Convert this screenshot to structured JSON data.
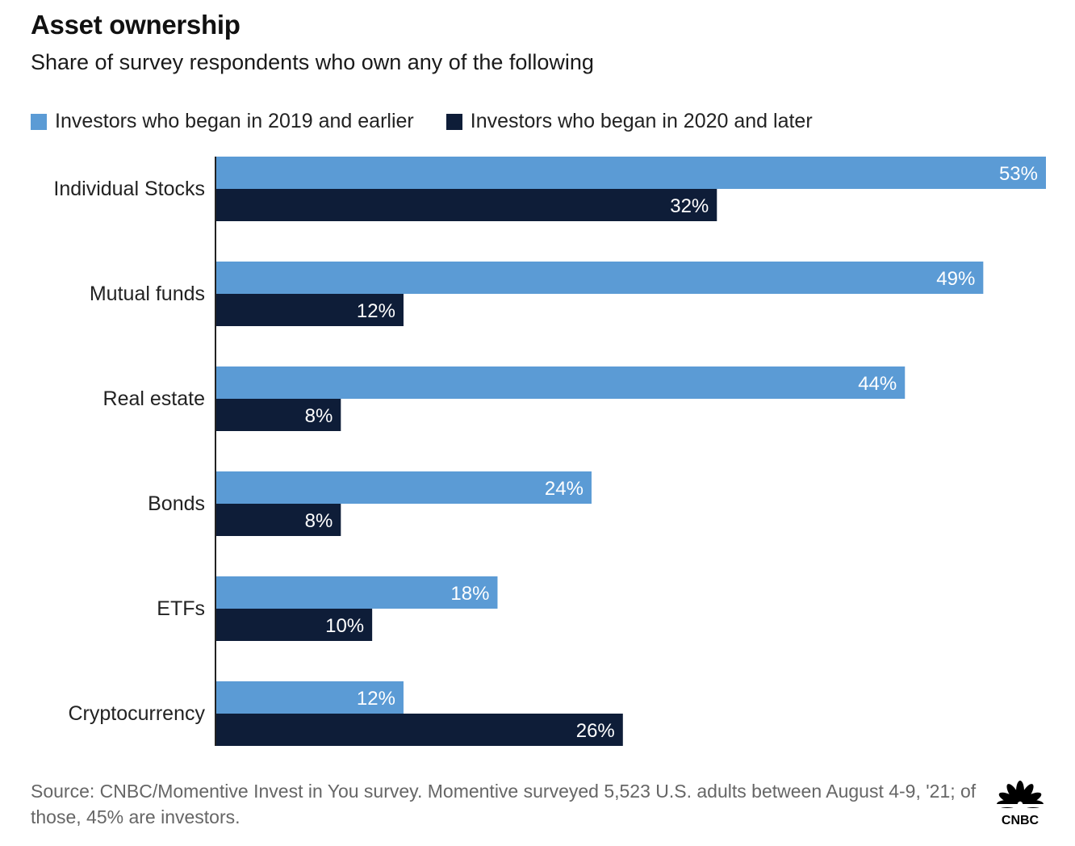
{
  "header": {
    "title": "Asset ownership",
    "subtitle": "Share of survey respondents who own any of the following"
  },
  "colors": {
    "series_2019": "#5b9bd5",
    "series_2020": "#0e1d38",
    "axis": "#222222",
    "source_text": "#666666"
  },
  "chart_data": {
    "type": "bar",
    "orientation": "horizontal",
    "title": "Asset ownership",
    "subtitle": "Share of survey respondents who own any of the following",
    "categories": [
      "Individual Stocks",
      "Mutual funds",
      "Real estate",
      "Bonds",
      "ETFs",
      "Cryptocurrency"
    ],
    "series": [
      {
        "name": "Investors who began in 2019 and earlier",
        "values": [
          53,
          49,
          44,
          24,
          18,
          12
        ],
        "labels": [
          "53%",
          "49%",
          "44%",
          "24%",
          "18%",
          "12%"
        ],
        "color": "#5b9bd5"
      },
      {
        "name": "Investors who began in 2020 and later",
        "values": [
          32,
          12,
          8,
          8,
          10,
          26
        ],
        "labels": [
          "32%",
          "12%",
          "8%",
          "8%",
          "10%",
          "26%"
        ],
        "color": "#0e1d38"
      }
    ],
    "xlim": [
      0,
      53
    ],
    "unit": "%",
    "grid": false,
    "legend_position": "top-left"
  },
  "footer": {
    "source": "Source: CNBC/Momentive Invest in You survey. Momentive surveyed 5,523 U.S. adults between August 4-9, '21; of those, 45% are investors.",
    "logo_text": "CNBC"
  }
}
